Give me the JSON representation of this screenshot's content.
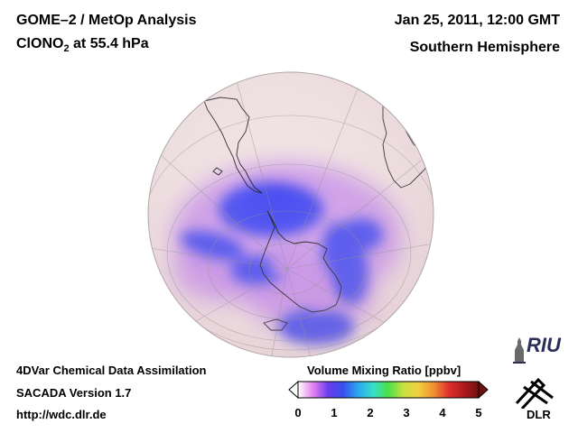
{
  "header": {
    "title_line1": "GOME–2 / MetOp Analysis",
    "species_base": "ClONO",
    "species_sub": "2",
    "species_rest": " at 55.4 hPa",
    "date": "Jan 25, 2011, 12:00 GMT",
    "region": "Southern Hemisphere"
  },
  "footer": {
    "line1": "4DVar Chemical Data Assimilation",
    "line2": "SACADA Version 1.7",
    "line3": "http://wdc.dlr.de"
  },
  "colorbar": {
    "title": "Volume Mixing Ratio [ppbv]",
    "ticks": [
      "0",
      "1",
      "2",
      "3",
      "4",
      "5"
    ],
    "min": 0,
    "max": 5,
    "colors": [
      "#ffffff",
      "#e680f0",
      "#6a3df0",
      "#3a4ff0",
      "#2aa8f0",
      "#36e0c8",
      "#4ae04a",
      "#c8e040",
      "#f0d040",
      "#f09030",
      "#e03030",
      "#b01a1a",
      "#701010"
    ]
  },
  "logos": {
    "riu": "RIU",
    "dlr": "DLR"
  },
  "map": {
    "background_color": "#f0e2e2",
    "low_color": "#4a4ef0",
    "mid_color": "#c890ea"
  }
}
